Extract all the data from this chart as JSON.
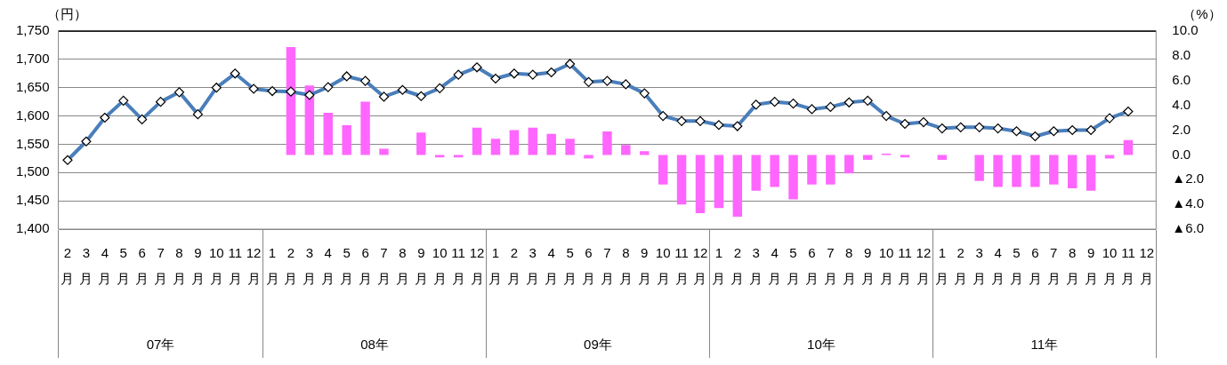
{
  "chart_data": {
    "type": "line",
    "categories": [
      "2月",
      "3月",
      "4月",
      "5月",
      "6月",
      "7月",
      "8月",
      "9月",
      "10月",
      "11月",
      "12月",
      "1月",
      "2月",
      "3月",
      "4月",
      "5月",
      "6月",
      "7月",
      "8月",
      "9月",
      "10月",
      "11月",
      "12月",
      "1月",
      "2月",
      "3月",
      "4月",
      "5月",
      "6月",
      "7月",
      "8月",
      "9月",
      "10月",
      "11月",
      "12月",
      "1月",
      "2月",
      "3月",
      "4月",
      "5月",
      "6月",
      "7月",
      "8月",
      "9月",
      "10月",
      "11月",
      "12月",
      "1月",
      "2月",
      "3月",
      "4月",
      "5月",
      "6月",
      "7月",
      "8月",
      "9月",
      "10月",
      "11月",
      "12月"
    ],
    "series": [
      {
        "type": "bar",
        "axis": "y2",
        "color": "#ff66ff",
        "values": [
          null,
          null,
          null,
          null,
          null,
          null,
          null,
          null,
          null,
          null,
          null,
          null,
          8.7,
          5.6,
          3.4,
          2.4,
          4.3,
          0.5,
          null,
          1.8,
          -0.2,
          -0.2,
          2.2,
          1.3,
          2.0,
          2.2,
          1.7,
          1.3,
          -0.3,
          1.9,
          0.8,
          0.3,
          -2.4,
          -4.0,
          -4.7,
          -4.3,
          -5.0,
          -2.9,
          -2.6,
          -3.6,
          -2.4,
          -2.4,
          -1.5,
          -0.4,
          0.1,
          -0.2,
          null,
          -0.4,
          null,
          -2.1,
          -2.6,
          -2.6,
          -2.6,
          -2.4,
          -2.7,
          -2.9,
          -0.3,
          1.2,
          null
        ]
      },
      {
        "color": "#4a7ebb",
        "values": [
          1522,
          1555,
          1597,
          1627,
          1594,
          1625,
          1642,
          1603,
          1650,
          1675,
          1648,
          1644,
          1643,
          1637,
          1651,
          1670,
          1662,
          1634,
          1646,
          1635,
          1649,
          1673,
          1686,
          1666,
          1675,
          1673,
          1677,
          1692,
          1660,
          1662,
          1656,
          1640,
          1600,
          1591,
          1591,
          1584,
          1582,
          1620,
          1625,
          1622,
          1612,
          1616,
          1624,
          1627,
          1600,
          1586,
          1589,
          1578,
          1580,
          1580,
          1578,
          1573,
          1564,
          1573,
          1575,
          1575,
          1596,
          1608,
          null
        ]
      }
    ],
    "ylim": [
      1400,
      1750
    ],
    "yticks": [
      {
        "value": 1400,
        "label": "1,400"
      },
      {
        "value": 1450,
        "label": "1,450"
      },
      {
        "value": 1500,
        "label": "1,500"
      },
      {
        "value": 1550,
        "label": "1,550"
      },
      {
        "value": 1600,
        "label": "1,600"
      },
      {
        "value": 1650,
        "label": "1,650"
      },
      {
        "value": 1700,
        "label": "1,700"
      },
      {
        "value": 1750,
        "label": "1,750"
      }
    ],
    "y2lim": [
      -6,
      10
    ],
    "y2ticks": [
      {
        "value": -6,
        "label": "▲6.0"
      },
      {
        "value": -4,
        "label": "▲4.0"
      },
      {
        "value": -2,
        "label": "▲2.0"
      },
      {
        "value": 0,
        "label": "0.0"
      },
      {
        "value": 2,
        "label": "2.0"
      },
      {
        "value": 4,
        "label": "4.0"
      },
      {
        "value": 6,
        "label": "6.0"
      },
      {
        "value": 8,
        "label": "8.0"
      },
      {
        "value": 10,
        "label": "10.0"
      }
    ],
    "ylabel": "（円）",
    "y2label": "（%）",
    "annotations": [
      "07年",
      "08年",
      "09年",
      "10年",
      "11年"
    ],
    "grid": "y",
    "legend": false,
    "marker": "diamond"
  }
}
